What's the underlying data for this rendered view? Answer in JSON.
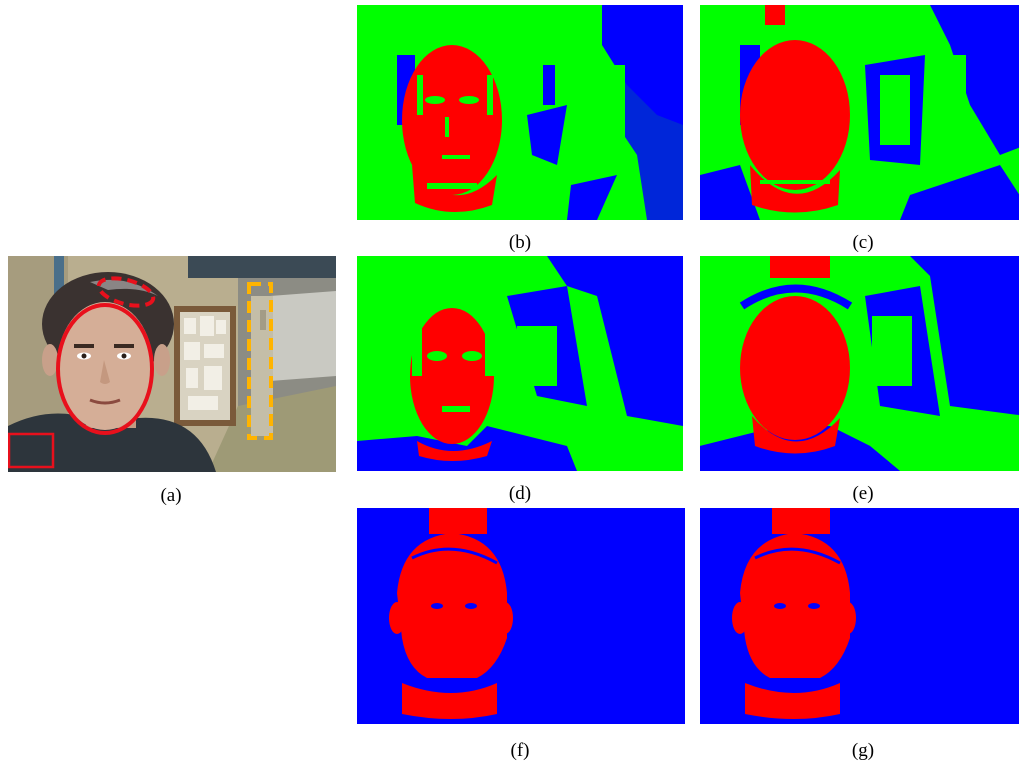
{
  "figure": {
    "panels": [
      {
        "id": "a",
        "caption": "(a)",
        "content": "photo",
        "annotations": [
          "solid-red-ellipse",
          "dashed-red-ellipse",
          "solid-red-rectangle",
          "dashed-yellow-rectangle"
        ]
      },
      {
        "id": "b",
        "caption": "(b)",
        "content": "segmentation-map"
      },
      {
        "id": "c",
        "caption": "(c)",
        "content": "segmentation-map"
      },
      {
        "id": "d",
        "caption": "(d)",
        "content": "segmentation-map"
      },
      {
        "id": "e",
        "caption": "(e)",
        "content": "segmentation-map"
      },
      {
        "id": "f",
        "caption": "(f)",
        "content": "segmentation-map"
      },
      {
        "id": "g",
        "caption": "(g)",
        "content": "segmentation-map"
      }
    ],
    "colors": {
      "red": "#ff0000",
      "green": "#00ff00",
      "blue": "#0000ff",
      "annotation_red": "#e8101c",
      "annotation_yellow": "#ffb400"
    }
  }
}
